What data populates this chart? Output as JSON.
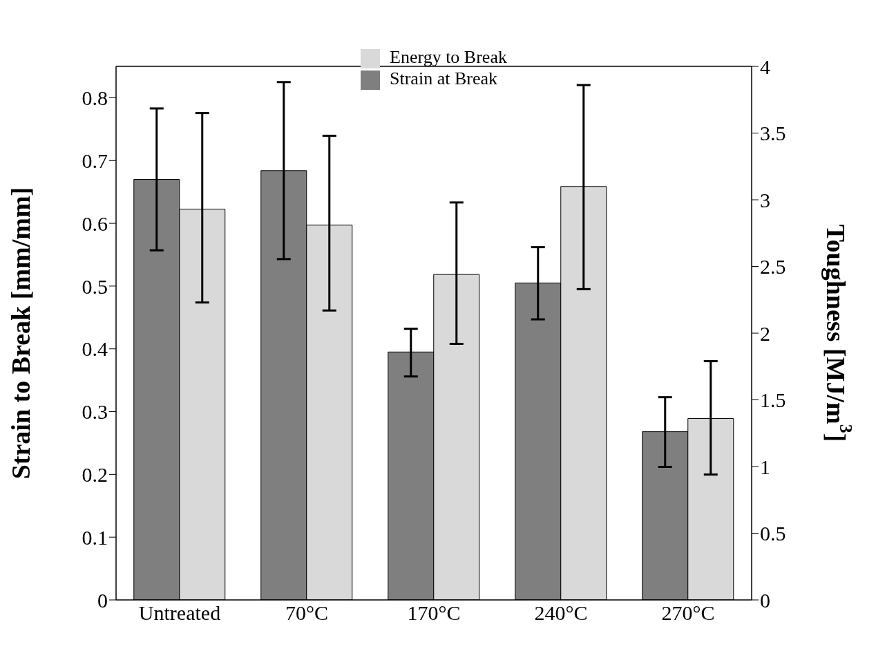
{
  "chart_data": {
    "type": "bar",
    "categories": [
      "Untreated",
      "70°C",
      "170°C",
      "240°C",
      "270°C"
    ],
    "ylabel": "Strain to Break [mm/mm]",
    "y2label": "Toughness [MJ/m$^{3}$]",
    "ylim": [
      0,
      0.85
    ],
    "yticks": [
      0,
      0.1,
      0.2,
      0.3,
      0.4,
      0.5,
      0.6,
      0.7,
      0.8
    ],
    "y2lim": [
      0,
      4
    ],
    "y2ticks": [
      0,
      0.5,
      1,
      1.5,
      2,
      2.5,
      3,
      3.5,
      4
    ],
    "series": [
      {
        "name": "Strain at Break",
        "color": "#7f7f7f",
        "values": [
          0.67,
          0.684,
          0.395,
          0.505,
          0.268
        ],
        "errors": [
          [
            0.557,
            0.783
          ],
          [
            0.543,
            0.825
          ],
          [
            0.356,
            0.432
          ],
          [
            0.447,
            0.562
          ],
          [
            0.212,
            0.323
          ]
        ]
      },
      {
        "name": "Energy to Break",
        "color": "#d9d9d9",
        "axis": "y2",
        "values": [
          2.93,
          2.81,
          2.44,
          3.1,
          1.36
        ],
        "errors": [
          [
            2.23,
            3.65
          ],
          [
            2.17,
            3.48
          ],
          [
            1.92,
            2.98
          ],
          [
            2.33,
            3.86
          ],
          [
            0.94,
            1.79
          ]
        ]
      }
    ],
    "grid": false,
    "legend": "top"
  }
}
